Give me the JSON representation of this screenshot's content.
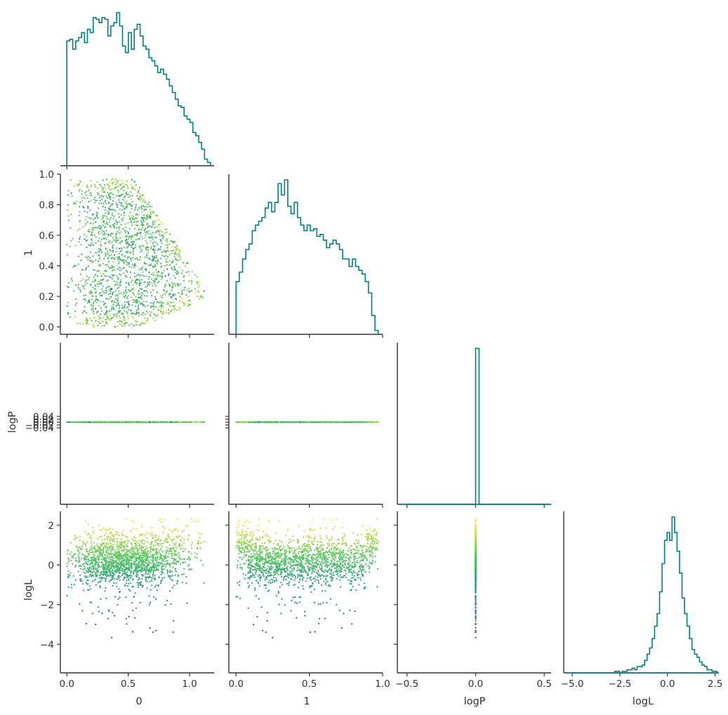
{
  "colors": {
    "hist": "#008080",
    "axis": "#333333",
    "colormap": [
      "#440154",
      "#3b528b",
      "#21918c",
      "#5ec962",
      "#fde725"
    ]
  },
  "chart_data": {
    "type": "scatter",
    "subtype": "corner-plot",
    "parameters": [
      "0",
      "1",
      "logP",
      "logL"
    ],
    "axis_labels": {
      "x": [
        "0",
        "1",
        "logP",
        "logL"
      ],
      "y": [
        "",
        "1",
        "logP",
        "logL"
      ]
    },
    "ticks": {
      "0": [
        "0.0",
        "0.5",
        "1.0"
      ],
      "1": [
        "0.0",
        "0.5",
        "1.0"
      ],
      "logP_x": [
        "−0.5",
        "0.0",
        "0.5"
      ],
      "logL_x": [
        "−5.0",
        "−2.5",
        "0.0",
        "2.5"
      ],
      "1_y": [
        "0.0",
        "0.2",
        "0.4",
        "0.6",
        "0.8",
        "1.0"
      ],
      "logP_y": [
        "−0.04",
        "−0.02",
        "0.00",
        "0.02",
        "0.04"
      ],
      "logL_y": [
        "−4",
        "−2",
        "0",
        "2"
      ]
    },
    "ranges": {
      "0": [
        -0.03,
        1.2
      ],
      "1": [
        -0.03,
        1.0
      ],
      "logP": [
        -0.55,
        0.55
      ],
      "logL": [
        -5.3,
        2.7
      ]
    },
    "color_by": "logL",
    "histograms": {
      "0": {
        "bin_edges": [
          0.0,
          1.17
        ],
        "counts": [
          75,
          76,
          70,
          75,
          77,
          80,
          74,
          82,
          80,
          89,
          88,
          86,
          89,
          88,
          78,
          84,
          86,
          92,
          84,
          72,
          68,
          80,
          70,
          82,
          85,
          78,
          72,
          70,
          65,
          63,
          60,
          56,
          58,
          55,
          52,
          48,
          44,
          40,
          36,
          35,
          30,
          28,
          26,
          20,
          18,
          14,
          10,
          4,
          2
        ]
      },
      "1": {
        "bin_edges": [
          0.0,
          0.97
        ],
        "counts": [
          28,
          33,
          40,
          45,
          48,
          55,
          58,
          60,
          62,
          67,
          70,
          65,
          70,
          80,
          74,
          82,
          68,
          64,
          70,
          62,
          58,
          55,
          58,
          55,
          56,
          52,
          53,
          50,
          46,
          48,
          50,
          48,
          45,
          40,
          40,
          36,
          40,
          36,
          34,
          32,
          28,
          22,
          10,
          2
        ]
      },
      "logP": {
        "bin_edges": [
          -0.5,
          0.5
        ],
        "counts": [
          0,
          0,
          0,
          0,
          0,
          0,
          0,
          0,
          0,
          0,
          0,
          0,
          0,
          0,
          0,
          0,
          0,
          0,
          0,
          0,
          100,
          0,
          0,
          0,
          0,
          0,
          0,
          0,
          0,
          0,
          0,
          0,
          0,
          0,
          0,
          0,
          0,
          0,
          0,
          0
        ]
      },
      "logL": {
        "bin_edges": [
          -5.0,
          2.6
        ],
        "counts": [
          0,
          0,
          0,
          0,
          0,
          0,
          0,
          0,
          0,
          0,
          0,
          0,
          0,
          0,
          0,
          0,
          0,
          1,
          1,
          0,
          1,
          1,
          2,
          2,
          3,
          2,
          4,
          4,
          5,
          8,
          12,
          16,
          22,
          30,
          38,
          52,
          70,
          85,
          90,
          85,
          100,
          90,
          78,
          64,
          48,
          38,
          30,
          22,
          15,
          12,
          10,
          7,
          5,
          4,
          2,
          2,
          1,
          1
        ]
      }
    },
    "scatter": {
      "n_points": 4000,
      "logP_value": 0.0
    }
  }
}
